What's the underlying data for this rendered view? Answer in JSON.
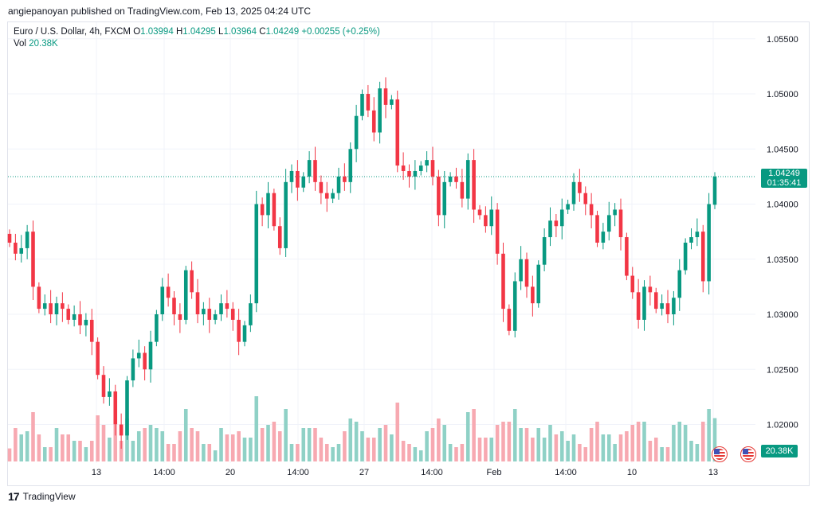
{
  "header": {
    "publisher": "angiepanoyan published on TradingView.com, Feb 13, 2025 04:24 UTC"
  },
  "legend": {
    "symbol": "Euro / U.S. Dollar, 4h, FXCM",
    "o_label": "O",
    "o_value": "1.03994",
    "h_label": "H",
    "h_value": "1.04295",
    "l_label": "L",
    "l_value": "1.03964",
    "c_label": "C",
    "c_value": "1.04249",
    "change": "+0.00255 (+0.25%)",
    "vol_label": "Vol",
    "vol_value": "20.38K"
  },
  "current_price": {
    "price": "1.04249",
    "countdown": "01:35:41"
  },
  "volume_badge": "20.38K",
  "footer": {
    "brand": "TradingView"
  },
  "colors": {
    "up": "#089981",
    "down": "#f23645",
    "up_vol": "#8fd1c6",
    "down_vol": "#f7a9b1"
  },
  "chart_data": {
    "type": "candlestick",
    "title": "Euro / U.S. Dollar, 4h, FXCM",
    "ylim": [
      1.0165,
      1.0565
    ],
    "y_ticks": [
      "1.05500",
      "1.05000",
      "1.04500",
      "1.04000",
      "1.03500",
      "1.03000",
      "1.02500",
      "1.02000"
    ],
    "x_ticks": [
      "13",
      "14:00",
      "20",
      "14:00",
      "27",
      "14:00",
      "Feb",
      "14:00",
      "10",
      "13"
    ],
    "last_price": 1.04249,
    "close": [
      1.0365,
      1.0355,
      1.036,
      1.0375,
      1.0325,
      1.0305,
      1.031,
      1.03,
      1.031,
      1.0305,
      1.0295,
      1.03,
      1.029,
      1.0295,
      1.0275,
      1.0245,
      1.0225,
      1.023,
      1.02,
      1.019,
      1.024,
      1.026,
      1.0265,
      1.025,
      1.0275,
      1.03,
      1.0325,
      1.0315,
      1.03,
      1.0295,
      1.034,
      1.032,
      1.03,
      1.0305,
      1.0295,
      1.03,
      1.031,
      1.0305,
      1.0295,
      1.0275,
      1.029,
      1.031,
      1.04,
      1.039,
      1.041,
      1.038,
      1.036,
      1.042,
      1.043,
      1.0415,
      1.0425,
      1.044,
      1.042,
      1.041,
      1.0405,
      1.041,
      1.0425,
      1.042,
      1.045,
      1.048,
      1.05,
      1.0485,
      1.0465,
      1.0505,
      1.049,
      1.0495,
      1.0435,
      1.043,
      1.0425,
      1.043,
      1.0435,
      1.044,
      1.0425,
      1.039,
      1.042,
      1.0425,
      1.042,
      1.0405,
      1.044,
      1.0395,
      1.039,
      1.038,
      1.0395,
      1.0355,
      1.0305,
      1.0285,
      1.033,
      1.035,
      1.0325,
      1.031,
      1.0345,
      1.037,
      1.0385,
      1.038,
      1.0395,
      1.04,
      1.042,
      1.041,
      1.04,
      1.039,
      1.0365,
      1.0375,
      1.039,
      1.0395,
      1.037,
      1.0335,
      1.032,
      1.0295,
      1.0325,
      1.032,
      1.0305,
      1.031,
      1.03,
      1.0315,
      1.034,
      1.0365,
      1.037,
      1.0375,
      1.033,
      1.04,
      1.0425
    ]
  }
}
